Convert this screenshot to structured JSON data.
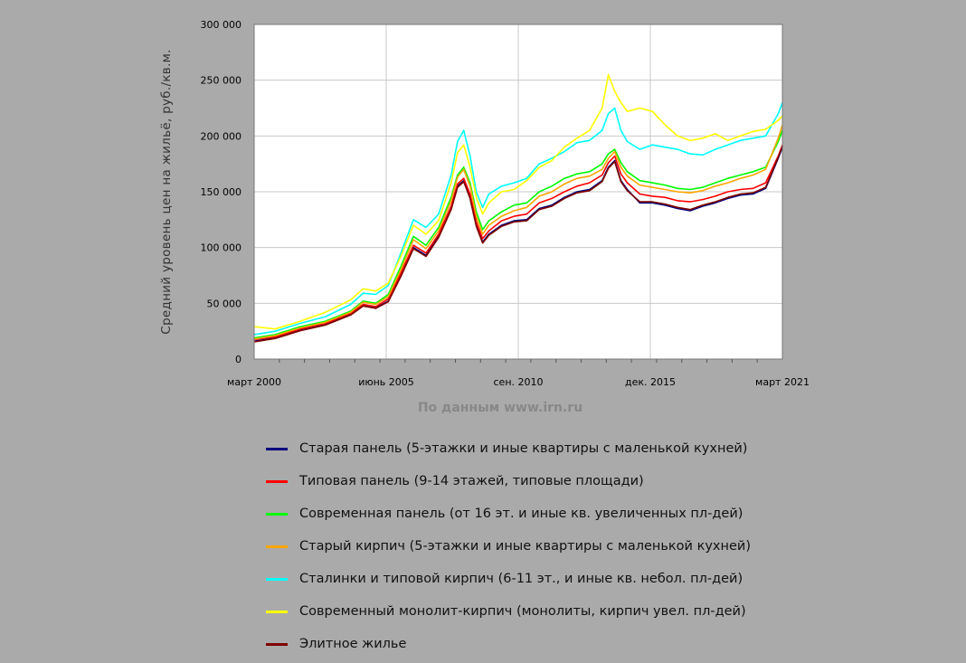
{
  "chart_data": {
    "type": "line",
    "title": "",
    "ylabel": "Средний уровень цен на жильё, руб./кв.м.",
    "xlabel": "",
    "source_note": "По данным www.irn.ru",
    "ylim": [
      0,
      300000
    ],
    "xlim": [
      2000.167,
      2021.167
    ],
    "grid": true,
    "legend_position": "bottom",
    "y_ticks": [
      {
        "value": 0,
        "label": "0"
      },
      {
        "value": 50000,
        "label": "50 000"
      },
      {
        "value": 100000,
        "label": "100 000"
      },
      {
        "value": 150000,
        "label": "150 000"
      },
      {
        "value": 200000,
        "label": "200 000"
      },
      {
        "value": 250000,
        "label": "250 000"
      },
      {
        "value": 300000,
        "label": "300 000"
      }
    ],
    "x_ticks": [
      {
        "value": 2000.167,
        "label": "март 2000"
      },
      {
        "value": 2005.417,
        "label": "июнь 2005"
      },
      {
        "value": 2010.667,
        "label": "сен. 2010"
      },
      {
        "value": 2015.917,
        "label": "дек. 2015"
      },
      {
        "value": 2021.167,
        "label": "март 2021"
      }
    ],
    "x": [
      2000.17,
      2001.0,
      2002.0,
      2003.0,
      2004.0,
      2004.5,
      2005.0,
      2005.5,
      2006.0,
      2006.5,
      2007.0,
      2007.5,
      2008.0,
      2008.25,
      2008.5,
      2008.75,
      2009.0,
      2009.25,
      2009.5,
      2010.0,
      2010.5,
      2011.0,
      2011.5,
      2012.0,
      2012.5,
      2013.0,
      2013.5,
      2014.0,
      2014.25,
      2014.5,
      2014.75,
      2015.0,
      2015.5,
      2016.0,
      2016.5,
      2017.0,
      2017.5,
      2018.0,
      2018.5,
      2019.0,
      2019.5,
      2020.0,
      2020.5,
      2021.0,
      2021.17
    ],
    "series": [
      {
        "name": "Старая панель (5-этажки и иные квартиры с маленькой кухней)",
        "color": "#00007f",
        "values": [
          16000,
          19000,
          26000,
          31000,
          40000,
          48000,
          46000,
          52000,
          75000,
          100000,
          93000,
          110000,
          135000,
          155000,
          160000,
          145000,
          120000,
          105000,
          112000,
          120000,
          124000,
          125000,
          135000,
          138000,
          145000,
          150000,
          152000,
          160000,
          172000,
          178000,
          160000,
          152000,
          140000,
          140000,
          138000,
          135000,
          133000,
          137000,
          140000,
          144000,
          147000,
          148000,
          153000,
          180000,
          190000
        ]
      },
      {
        "name": "Типовая панель (9-14 этажей, типовые площади)",
        "color": "#ff0000",
        "values": [
          17500,
          20000,
          27000,
          32000,
          41000,
          49000,
          47000,
          54000,
          77000,
          102000,
          95000,
          112000,
          137000,
          157000,
          162000,
          148000,
          123000,
          108000,
          115000,
          124000,
          128000,
          130000,
          140000,
          144000,
          150000,
          155000,
          158000,
          165000,
          176000,
          182000,
          166000,
          158000,
          148000,
          146000,
          145000,
          142000,
          141000,
          143000,
          146000,
          150000,
          152000,
          153000,
          158000,
          182000,
          192000
        ]
      },
      {
        "name": "Современная панель (от 16 эт. и иные кв. увеличенных пл-дей)",
        "color": "#00ff00",
        "values": [
          19000,
          22000,
          29000,
          34000,
          43000,
          52000,
          50000,
          58000,
          83000,
          110000,
          102000,
          118000,
          145000,
          165000,
          172000,
          158000,
          132000,
          116000,
          124000,
          132000,
          138000,
          140000,
          150000,
          155000,
          162000,
          166000,
          168000,
          175000,
          184000,
          188000,
          176000,
          168000,
          160000,
          158000,
          156000,
          153000,
          152000,
          154000,
          158000,
          162000,
          165000,
          168000,
          172000,
          195000,
          205000
        ]
      },
      {
        "name": "Старый кирпич (5-этажки и иные квартиры с маленькой кухней)",
        "color": "#ffa500",
        "values": [
          18000,
          21000,
          28000,
          33000,
          42000,
          51000,
          49000,
          56000,
          80000,
          107000,
          99000,
          115000,
          142000,
          163000,
          170000,
          155000,
          128000,
          112000,
          120000,
          128000,
          133000,
          136000,
          146000,
          150000,
          157000,
          162000,
          164000,
          170000,
          180000,
          186000,
          172000,
          164000,
          156000,
          154000,
          152000,
          150000,
          149000,
          151000,
          155000,
          158000,
          162000,
          165000,
          170000,
          198000,
          210000
        ]
      },
      {
        "name": "Сталинки и типовой кирпич (6-11 эт., и иные кв. небол. пл-дей)",
        "color": "#00ffff",
        "values": [
          22000,
          25000,
          32000,
          38000,
          49000,
          59000,
          58000,
          66000,
          95000,
          125000,
          118000,
          130000,
          165000,
          195000,
          205000,
          182000,
          150000,
          136000,
          148000,
          155000,
          158000,
          162000,
          175000,
          180000,
          186000,
          194000,
          196000,
          205000,
          220000,
          225000,
          205000,
          195000,
          188000,
          192000,
          190000,
          188000,
          184000,
          183000,
          188000,
          192000,
          196000,
          198000,
          200000,
          220000,
          230000
        ]
      },
      {
        "name": "Современный монолит-кирпич (монолиты, кирпич увел. пл-дей)",
        "color": "#ffff00",
        "values": [
          29000,
          27000,
          34000,
          42000,
          53000,
          63000,
          61000,
          68000,
          92000,
          120000,
          112000,
          124000,
          158000,
          185000,
          192000,
          172000,
          145000,
          130000,
          140000,
          150000,
          152000,
          160000,
          172000,
          178000,
          190000,
          198000,
          205000,
          225000,
          255000,
          240000,
          230000,
          222000,
          225000,
          222000,
          210000,
          200000,
          196000,
          198000,
          202000,
          196000,
          200000,
          204000,
          206000,
          214000,
          218000
        ]
      },
      {
        "name": "Элитное жилье",
        "color": "#7f0000",
        "values": [
          15500,
          18500,
          25500,
          30500,
          39500,
          47500,
          45500,
          51500,
          74000,
          99000,
          92000,
          109000,
          134000,
          154000,
          159000,
          144000,
          119000,
          104000,
          111000,
          119000,
          123000,
          124000,
          134000,
          137000,
          144000,
          149000,
          151000,
          159000,
          171000,
          177000,
          159000,
          151000,
          141000,
          141000,
          139000,
          136000,
          134000,
          138000,
          141000,
          145000,
          148000,
          149000,
          154000,
          181000,
          191000
        ]
      }
    ]
  }
}
